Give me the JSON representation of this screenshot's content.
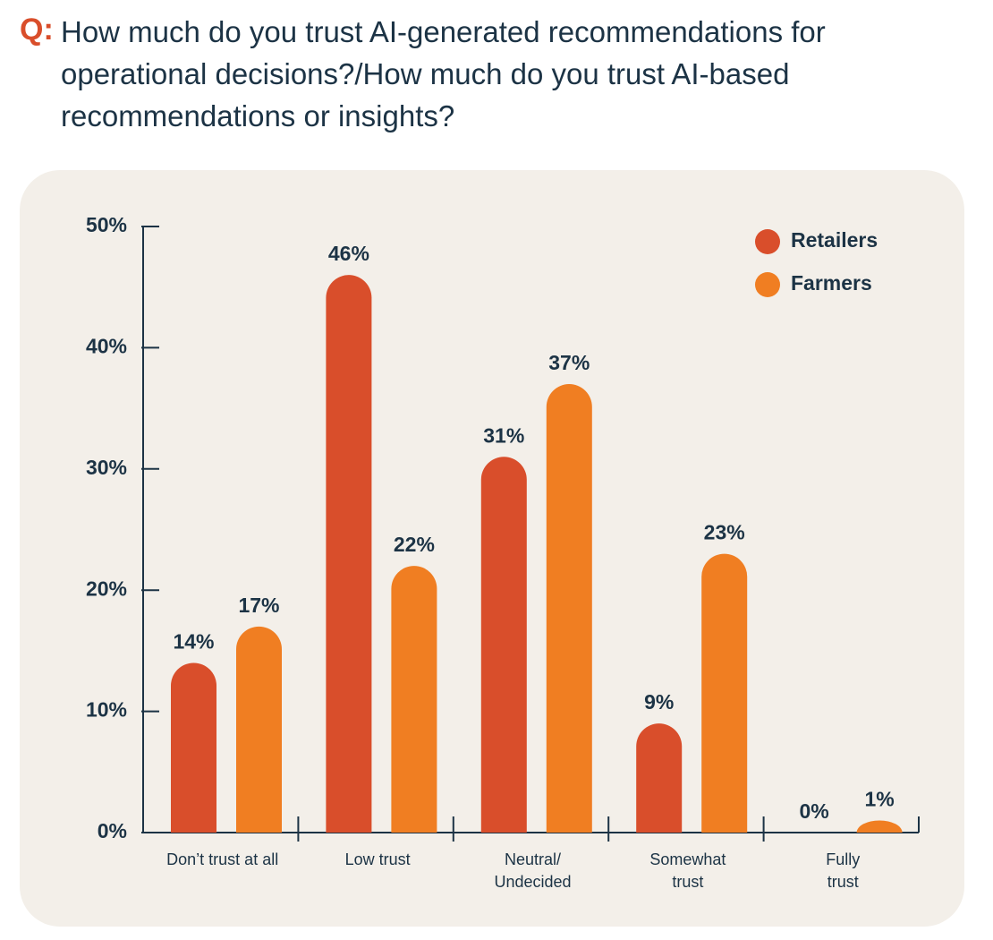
{
  "chart_data": {
    "type": "bar",
    "q_label": "Q:",
    "title": "How much do you trust AI-generated recommendations for operational decisions?/How much do you trust AI-based recommendations or insights?",
    "categories": [
      "Don’t trust at all",
      "Low trust",
      "Neutral/\nUndecided",
      "Somewhat\ntrust",
      "Fully\ntrust"
    ],
    "series": [
      {
        "name": "Retailers",
        "color": "#d94e2b",
        "values": [
          14,
          46,
          31,
          9,
          0
        ],
        "value_labels": [
          "14%",
          "46%",
          "31%",
          "9%",
          "0%"
        ]
      },
      {
        "name": "Farmers",
        "color": "#f07e22",
        "values": [
          17,
          22,
          37,
          23,
          1
        ],
        "value_labels": [
          "17%",
          "22%",
          "37%",
          "23%",
          "1%"
        ]
      }
    ],
    "ylim": [
      0,
      50
    ],
    "yticks": [
      {
        "value": 0,
        "label": "0%"
      },
      {
        "value": 10,
        "label": "10%"
      },
      {
        "value": 20,
        "label": "20%"
      },
      {
        "value": 30,
        "label": "30%"
      },
      {
        "value": 40,
        "label": "40%"
      },
      {
        "value": 50,
        "label": "50%"
      }
    ],
    "legend": "top-right"
  }
}
